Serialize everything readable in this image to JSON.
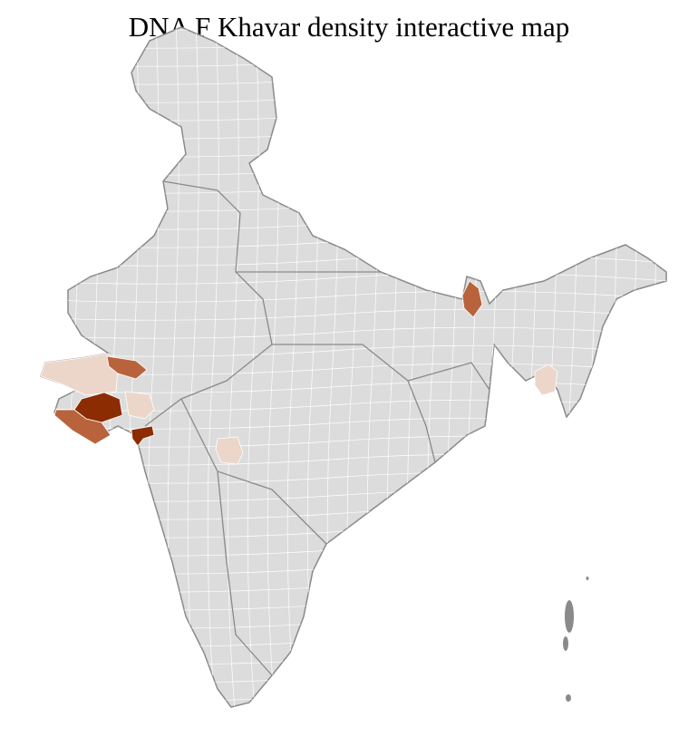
{
  "title": "DNA F Khavar density interactive map",
  "colors": {
    "no_data": "#dcdcdc",
    "state_border": "#8a8a8a",
    "district_border": "#ffffff",
    "low": "#ecd6ca",
    "medium": "#b9633c",
    "high": "#8b2c02"
  },
  "highlighted_regions": [
    {
      "region": "Kutch",
      "level": "low"
    },
    {
      "region": "North Gujarat",
      "level": "medium"
    },
    {
      "region": "Central Saurashtra",
      "level": "high"
    },
    {
      "region": "South Saurashtra",
      "level": "medium"
    },
    {
      "region": "East Gujarat",
      "level": "low"
    },
    {
      "region": "South Gujarat",
      "level": "high"
    },
    {
      "region": "Central Maharashtra",
      "level": "low"
    },
    {
      "region": "North Bengal",
      "level": "medium"
    },
    {
      "region": "Manipur",
      "level": "low"
    }
  ]
}
